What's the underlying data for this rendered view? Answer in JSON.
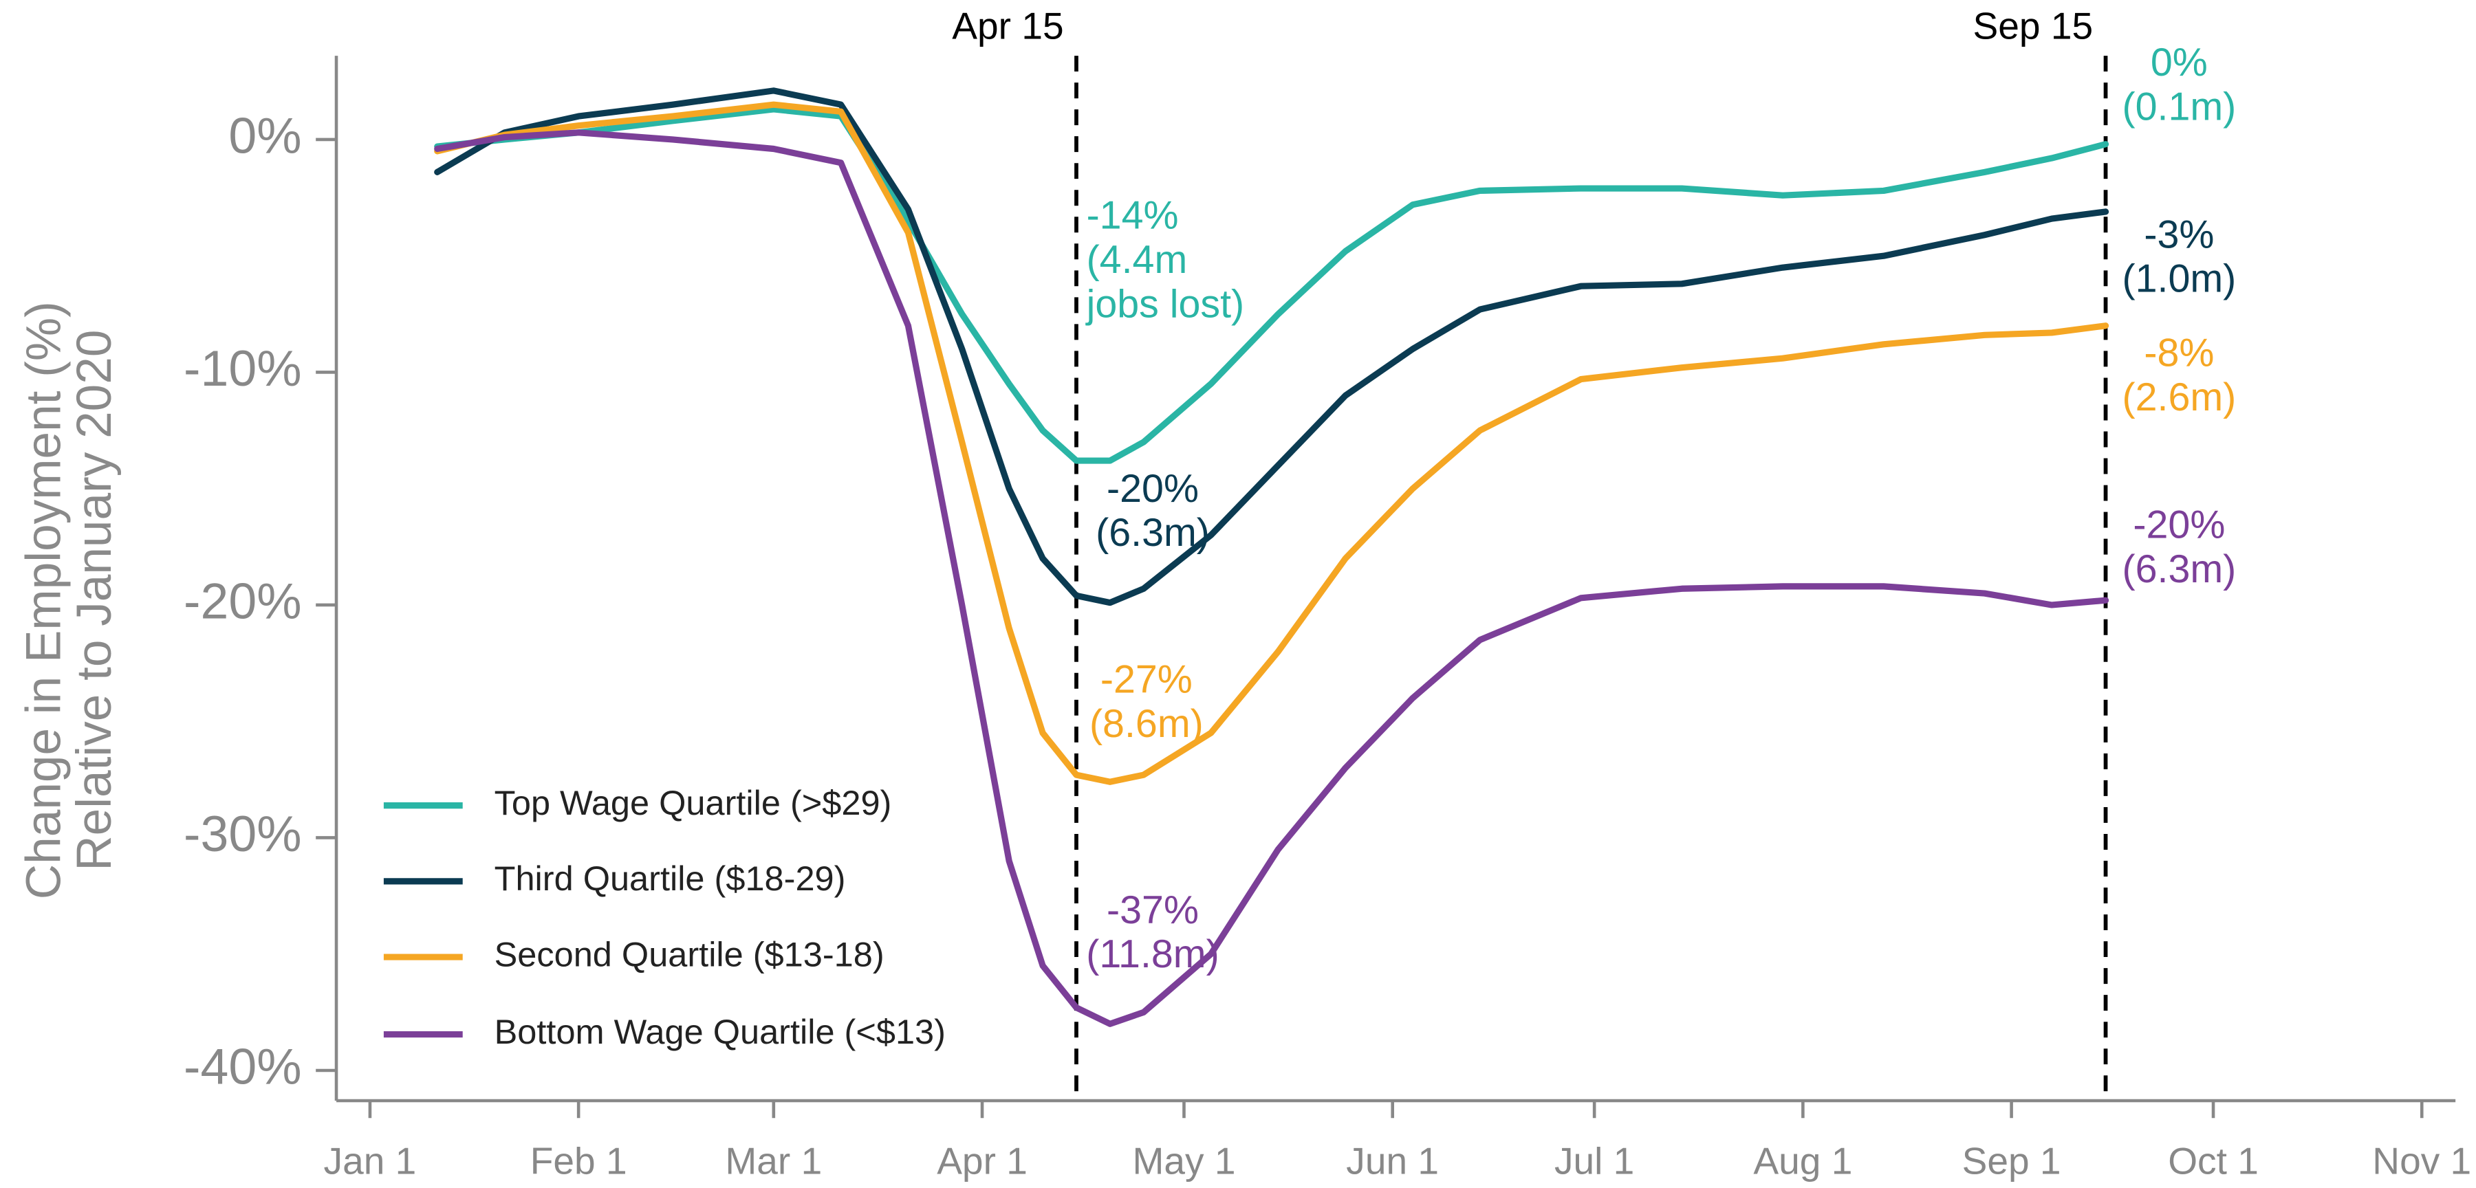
{
  "chart_data": {
    "type": "line",
    "y_label": [
      "Change in Employment (%)",
      "Relative to January 2020"
    ],
    "x": [
      10,
      20,
      31,
      45,
      60,
      70,
      80,
      88,
      95,
      100,
      105,
      110,
      115,
      125,
      135,
      145,
      155,
      165,
      180,
      195,
      210,
      225,
      240,
      250,
      258
    ],
    "series": [
      {
        "name": "Top Wage Quartile (>$29)",
        "color": "#2ab5a5",
        "values": [
          -0.3,
          0,
          0.3,
          0.8,
          1.3,
          1.0,
          -3.5,
          -7.5,
          -10.5,
          -12.5,
          -13.8,
          -13.8,
          -13,
          -10.5,
          -7.5,
          -4.8,
          -2.8,
          -2.2,
          -2.1,
          -2.1,
          -2.4,
          -2.2,
          -1.4,
          -0.8,
          -0.2
        ]
      },
      {
        "name": "Third Quartile ($18-29)",
        "color": "#0b3b52",
        "values": [
          -1.4,
          0.3,
          1,
          1.5,
          2.1,
          1.5,
          -3,
          -9,
          -15,
          -18,
          -19.6,
          -19.9,
          -19.3,
          -17,
          -14,
          -11,
          -9,
          -7.3,
          -6.3,
          -6.2,
          -5.5,
          -5,
          -4.1,
          -3.4,
          -3.1
        ]
      },
      {
        "name": "Second Quartile ($13-18)",
        "color": "#f5a623",
        "values": [
          -0.5,
          0.2,
          0.6,
          1,
          1.5,
          1.2,
          -4,
          -13,
          -21,
          -25.5,
          -27.3,
          -27.6,
          -27.3,
          -25.5,
          -22,
          -18,
          -15,
          -12.5,
          -10.3,
          -9.8,
          -9.4,
          -8.8,
          -8.4,
          -8.3,
          -8
        ]
      },
      {
        "name": "Bottom Wage Quartile (<$13)",
        "color": "#7b3f98",
        "values": [
          -0.4,
          0.1,
          0.3,
          0,
          -0.4,
          -1,
          -8,
          -20,
          -31,
          -35.5,
          -37.3,
          -38,
          -37.5,
          -35,
          -30.5,
          -27,
          -24,
          -21.5,
          -19.7,
          -19.3,
          -19.2,
          -19.2,
          -19.5,
          -20,
          -19.8
        ]
      }
    ],
    "xlim": [
      -5,
      310
    ],
    "xticks": [
      {
        "value": 0,
        "label": "Jan 1"
      },
      {
        "value": 31,
        "label": "Feb 1"
      },
      {
        "value": 60,
        "label": "Mar 1"
      },
      {
        "value": 91,
        "label": "Apr 1"
      },
      {
        "value": 121,
        "label": "May 1"
      },
      {
        "value": 152,
        "label": "Jun 1"
      },
      {
        "value": 182,
        "label": "Jul 1"
      },
      {
        "value": 213,
        "label": "Aug 1"
      },
      {
        "value": 244,
        "label": "Sep 1"
      },
      {
        "value": 274,
        "label": "Oct 1"
      },
      {
        "value": 305,
        "label": "Nov 1"
      }
    ],
    "ylim": [
      -41.3,
      3.6
    ],
    "yticks": [
      {
        "value": 0,
        "label": "0%"
      },
      {
        "value": -10,
        "label": "-10%"
      },
      {
        "value": -20,
        "label": "-20%"
      },
      {
        "value": -30,
        "label": "-30%"
      },
      {
        "value": -40,
        "label": "-40%"
      }
    ],
    "vlines": [
      {
        "x": 105,
        "label": "Apr 15"
      },
      {
        "x": 258,
        "label": "Sep 15"
      }
    ],
    "annotations": [
      {
        "lines": [
          "-14%",
          "(4.4m",
          "jobs lost)"
        ],
        "color": "#2ab5a5"
      },
      {
        "lines": [
          "-20%",
          "(6.3m)"
        ],
        "color": "#0b3b52"
      },
      {
        "lines": [
          "-27%",
          "(8.6m)"
        ],
        "color": "#f5a623"
      },
      {
        "lines": [
          "-37%",
          "(11.8m)"
        ],
        "color": "#7b3f98"
      },
      {
        "lines": [
          "0%",
          "(0.1m)"
        ],
        "color": "#2ab5a5"
      },
      {
        "lines": [
          "-3%",
          "(1.0m)"
        ],
        "color": "#0b3b52"
      },
      {
        "lines": [
          "-8%",
          "(2.6m)"
        ],
        "color": "#f5a623"
      },
      {
        "lines": [
          "-20%",
          "(6.3m)"
        ],
        "color": "#7b3f98"
      }
    ],
    "legend": "lower left"
  }
}
